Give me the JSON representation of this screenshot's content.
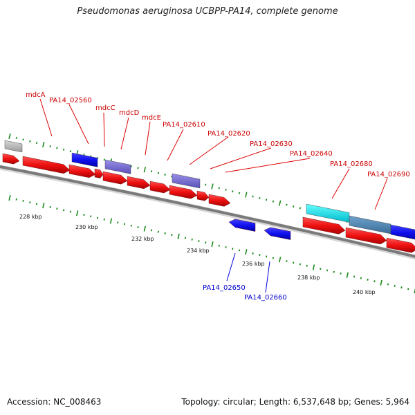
{
  "title": "Pseudomonas aeruginosa UCBPP-PA14, complete genome",
  "accession": "Accession: NC_008463",
  "summary": "Topology: circular; Length: 6,537,648 bp; Genes: 5,964",
  "ruler_labels": [
    "228 kbp",
    "230 kbp",
    "232 kbp",
    "234 kbp",
    "236 kbp",
    "238 kbp",
    "240 kbp"
  ],
  "forward_gene_labels": [
    "mdcA",
    "PA14_02560",
    "mdcC",
    "mdcD",
    "mdcE",
    "PA14_02610",
    "PA14_02620",
    "PA14_02630",
    "PA14_02640",
    "PA14_02680",
    "PA14_02690"
  ],
  "reverse_gene_labels": [
    "PA14_02650",
    "PA14_02660"
  ],
  "colors": {
    "forward_label": "#cc0000",
    "reverse_label": "#0000cc",
    "gene_arrow": "#ee1111",
    "tick": "#1a8a1a",
    "backbone": "#7a7a7a"
  }
}
